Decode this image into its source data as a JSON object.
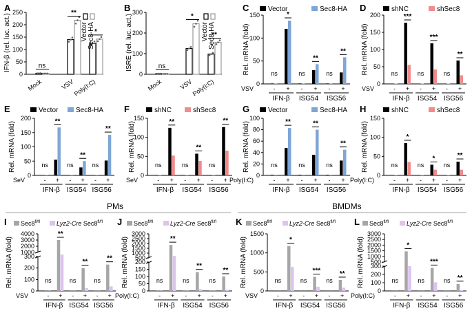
{
  "figure": {
    "section_pms": "PMs",
    "section_bmdms": "BMDMs",
    "colors": {
      "black": "#000000",
      "blue": "#7ea6d6",
      "pink": "#f08c8c",
      "gray": "#a6a6a6",
      "lavender": "#dcc3f0"
    }
  },
  "chart_data": [
    {
      "letter": "A",
      "type": "bar",
      "title": "",
      "ylabel": "IFN-β (rel. luc. act.)",
      "ylim": [
        0,
        250
      ],
      "yticks": [
        0,
        50,
        100,
        150,
        200,
        250
      ],
      "categories": [
        "Mock",
        "VSV",
        "Poly(I:C)"
      ],
      "series": [
        {
          "name": "Vector",
          "values": [
            4,
            140,
            125
          ]
        },
        {
          "name": "Sec8-HA",
          "values": [
            3,
            218,
            142
          ]
        }
      ],
      "legend_position": "right-vertical",
      "significance": [
        {
          "group": 0,
          "label": "ns"
        },
        {
          "group": 1,
          "label": "**"
        },
        {
          "group": 2,
          "label": "*"
        }
      ]
    },
    {
      "letter": "B",
      "type": "bar",
      "title": "",
      "ylabel": "ISRE (rel. luc. act.)",
      "ylim": [
        0,
        300
      ],
      "yticks": [
        0,
        100,
        200,
        300
      ],
      "categories": [
        "Mock",
        "VSV",
        "Poly(I:C)"
      ],
      "series": [
        {
          "name": "Vector",
          "values": [
            3,
            125,
            98
          ]
        },
        {
          "name": "Sec8-HA",
          "values": [
            2,
            245,
            155
          ]
        }
      ],
      "legend_position": "right-vertical",
      "significance": [
        {
          "group": 0,
          "label": "ns"
        },
        {
          "group": 1,
          "label": "*"
        },
        {
          "group": 2,
          "label": "**"
        }
      ]
    },
    {
      "letter": "C",
      "type": "bar",
      "ylabel": "Rel. mRNA (fold)",
      "ylim": [
        0,
        150
      ],
      "yticks": [
        0,
        50,
        100,
        150
      ],
      "stimulus": "VSV",
      "treatment_labels": [
        "-",
        "+"
      ],
      "genes": [
        "IFN-β",
        "ISG54",
        "ISG56"
      ],
      "series": [
        {
          "name": "Vector",
          "values": [
            1,
            120,
            1,
            30,
            1,
            25
          ]
        },
        {
          "name": "Sec8-HA",
          "values": [
            1,
            138,
            1,
            43,
            1,
            58
          ]
        }
      ],
      "legend_position": "top",
      "significance": [
        "ns",
        "*",
        "ns",
        "**",
        "ns",
        "**"
      ]
    },
    {
      "letter": "D",
      "type": "bar",
      "ylabel": "Rel. mRNA (fold)",
      "ylim": [
        0,
        200
      ],
      "yticks": [
        0,
        50,
        100,
        150,
        200
      ],
      "stimulus": "VSV",
      "treatment_labels": [
        "-",
        "+"
      ],
      "genes": [
        "IFN-β",
        "ISG54",
        "ISG56"
      ],
      "series": [
        {
          "name": "shNC",
          "values": [
            1,
            178,
            1,
            118,
            1,
            68
          ]
        },
        {
          "name": "shSec8",
          "values": [
            1,
            55,
            1,
            42,
            1,
            25
          ]
        }
      ],
      "legend_position": "top",
      "significance": [
        "ns",
        "***",
        "ns",
        "***",
        "ns",
        "**"
      ]
    },
    {
      "letter": "E",
      "type": "bar",
      "ylabel": "Rel. mRNA (fold)",
      "ylim": [
        0,
        200
      ],
      "yticks": [
        0,
        50,
        100,
        150,
        200
      ],
      "stimulus": "SeV",
      "treatment_labels": [
        "-",
        "+"
      ],
      "genes": [
        "IFN-β",
        "ISG54",
        "ISG56"
      ],
      "series": [
        {
          "name": "Vector",
          "values": [
            1,
            55,
            1,
            28,
            1,
            52
          ]
        },
        {
          "name": "Sec8-HA",
          "values": [
            1,
            168,
            1,
            50,
            1,
            142
          ]
        }
      ],
      "legend_position": "top",
      "significance": [
        "ns",
        "**",
        "ns",
        "**",
        "ns",
        "**"
      ]
    },
    {
      "letter": "F",
      "type": "bar",
      "ylabel": "Rel. mRNA (fold)",
      "ylim": [
        0,
        150
      ],
      "yticks": [
        0,
        50,
        100,
        150
      ],
      "stimulus": "SeV",
      "treatment_labels": [
        "-",
        "+"
      ],
      "genes": [
        "IFN-β",
        "ISG54",
        "ISG56"
      ],
      "series": [
        {
          "name": "shNC",
          "values": [
            1,
            125,
            1,
            57,
            1,
            127
          ]
        },
        {
          "name": "shSec8",
          "values": [
            1,
            52,
            1,
            38,
            1,
            65
          ]
        }
      ],
      "legend_position": "top",
      "significance": [
        "ns",
        "**",
        "ns",
        "**",
        "ns",
        "**"
      ]
    },
    {
      "letter": "G",
      "type": "bar",
      "ylabel": "Rel. mRNA (fold)",
      "ylim": [
        0,
        100
      ],
      "yticks": [
        0,
        20,
        40,
        60,
        80,
        100
      ],
      "stimulus": "Poly(I:C)",
      "treatment_labels": [
        "-",
        "+"
      ],
      "genes": [
        "IFN-β",
        "ISG54",
        "ISG56"
      ],
      "series": [
        {
          "name": "Vector",
          "values": [
            1,
            48,
            1,
            36,
            1,
            26
          ]
        },
        {
          "name": "Sec8-HA",
          "values": [
            1,
            83,
            1,
            80,
            1,
            45
          ]
        }
      ],
      "legend_position": "top",
      "significance": [
        "ns",
        "**",
        "ns",
        "**",
        "ns",
        "**"
      ]
    },
    {
      "letter": "H",
      "type": "bar",
      "ylabel": "Rel. mRNA (fold)",
      "ylim": [
        0,
        150
      ],
      "yticks": [
        0,
        50,
        100,
        150
      ],
      "stimulus": "Poly(I:C)",
      "treatment_labels": [
        "-",
        "+"
      ],
      "genes": [
        "IFN-β",
        "ISG54",
        "ISG56"
      ],
      "series": [
        {
          "name": "shNC",
          "values": [
            1,
            85,
            1,
            28,
            1,
            36
          ]
        },
        {
          "name": "shSec8",
          "values": [
            1,
            35,
            1,
            15,
            1,
            15
          ]
        }
      ],
      "legend_position": "top",
      "significance": [
        "ns",
        "*",
        "ns",
        "*",
        "ns",
        "**"
      ]
    },
    {
      "letter": "I",
      "type": "bar",
      "ylabel": "Rel. mRNA (fold)",
      "axis_break": true,
      "upper_ylim": [
        1000,
        4000
      ],
      "upper_ticks": [
        1000,
        2000,
        3000,
        4000
      ],
      "lower_ylim": [
        0,
        300
      ],
      "lower_ticks": [
        0,
        100,
        200,
        300
      ],
      "stimulus": "VSV",
      "treatment_labels": [
        "-",
        "+"
      ],
      "genes": [
        "IFN-β",
        "ISG54",
        "ISG56"
      ],
      "series": [
        {
          "name": "Sec8",
          "values": [
            1,
            3000,
            1,
            200,
            1,
            230
          ]
        },
        {
          "name": "Lyz2-Cre Sec8",
          "values": [
            1,
            650,
            1,
            25,
            1,
            40
          ]
        }
      ],
      "legend": [
        {
          "base": "Sec8",
          "sup": "fl/fl",
          "italic_prefix": ""
        },
        {
          "base": " Sec8",
          "sup": "fl/fl",
          "italic_prefix": "Lyz2-Cre"
        }
      ],
      "significance": [
        "ns",
        "**",
        "ns",
        "**",
        "ns",
        "**"
      ]
    },
    {
      "letter": "J",
      "type": "bar",
      "ylabel": "Rel. mRNA (fold)",
      "axis_break": true,
      "upper_ylim": [
        500,
        3000
      ],
      "upper_ticks": [
        500,
        1000,
        1500,
        2000,
        2500,
        3000
      ],
      "lower_ylim": [
        0,
        200
      ],
      "lower_ticks": [
        0,
        50,
        100,
        150,
        200
      ],
      "stimulus": "Poly(I:C)",
      "treatment_labels": [
        "-",
        "+"
      ],
      "genes": [
        "IFN-β",
        "ISG54",
        "ISG56"
      ],
      "series": [
        {
          "name": "Sec8",
          "values": [
            1,
            1850,
            1,
            130,
            1,
            100
          ]
        },
        {
          "name": "Lyz2-Cre Sec8",
          "values": [
            1,
            700,
            1,
            12,
            1,
            8
          ]
        }
      ],
      "legend": [
        {
          "base": "Sec8",
          "sup": "fl/fl",
          "italic_prefix": ""
        },
        {
          "base": " Sec8",
          "sup": "fl/fl",
          "italic_prefix": "Lyz2-Cre"
        }
      ],
      "significance": [
        "ns",
        "**",
        "ns",
        "**",
        "ns",
        "**"
      ]
    },
    {
      "letter": "K",
      "type": "bar",
      "ylabel": "Rel. mRNA (fold)",
      "ylim": [
        0,
        1500
      ],
      "yticks": [
        0,
        500,
        1000,
        1500
      ],
      "stimulus": "VSV",
      "treatment_labels": [
        "-",
        "+"
      ],
      "genes": [
        "IFN-β",
        "ISG54",
        "ISG56"
      ],
      "series": [
        {
          "name": "Sec8",
          "values": [
            1,
            1180,
            1,
            370,
            1,
            290
          ]
        },
        {
          "name": "Lyz2-Cre Sec8",
          "values": [
            1,
            630,
            1,
            110,
            1,
            85
          ]
        }
      ],
      "legend": [
        {
          "base": "Sec8",
          "sup": "fl/fl",
          "italic_prefix": ""
        },
        {
          "base": " Sec8",
          "sup": "fl/fl",
          "italic_prefix": "Lyz2-Cre"
        }
      ],
      "significance": [
        "ns",
        "*",
        "ns",
        "***",
        "ns",
        "**"
      ]
    },
    {
      "letter": "L",
      "type": "bar",
      "ylabel": "Rel. mRNA (fold)",
      "axis_break": true,
      "upper_ylim": [
        500,
        3000
      ],
      "upper_ticks": [
        500,
        1000,
        1500,
        2000,
        2500,
        3000
      ],
      "lower_ylim": [
        0,
        300
      ],
      "lower_ticks": [
        0,
        100,
        200,
        300
      ],
      "stimulus": "Poly(I:C)",
      "treatment_labels": [
        "-",
        "+"
      ],
      "genes": [
        "IFN-β",
        "ISG54",
        "ISG56"
      ],
      "series": [
        {
          "name": "Sec8",
          "values": [
            1,
            1450,
            1,
            280,
            1,
            85
          ]
        },
        {
          "name": "Lyz2-Cre Sec8",
          "values": [
            1,
            300,
            1,
            105,
            1,
            10
          ]
        }
      ],
      "legend": [
        {
          "base": "Sec8",
          "sup": "fl/fl",
          "italic_prefix": ""
        },
        {
          "base": " Sec8",
          "sup": "fl/fl",
          "italic_prefix": "Lyz2-Cre"
        }
      ],
      "significance": [
        "ns",
        "*",
        "ns",
        "***",
        "ns",
        "**"
      ]
    }
  ]
}
